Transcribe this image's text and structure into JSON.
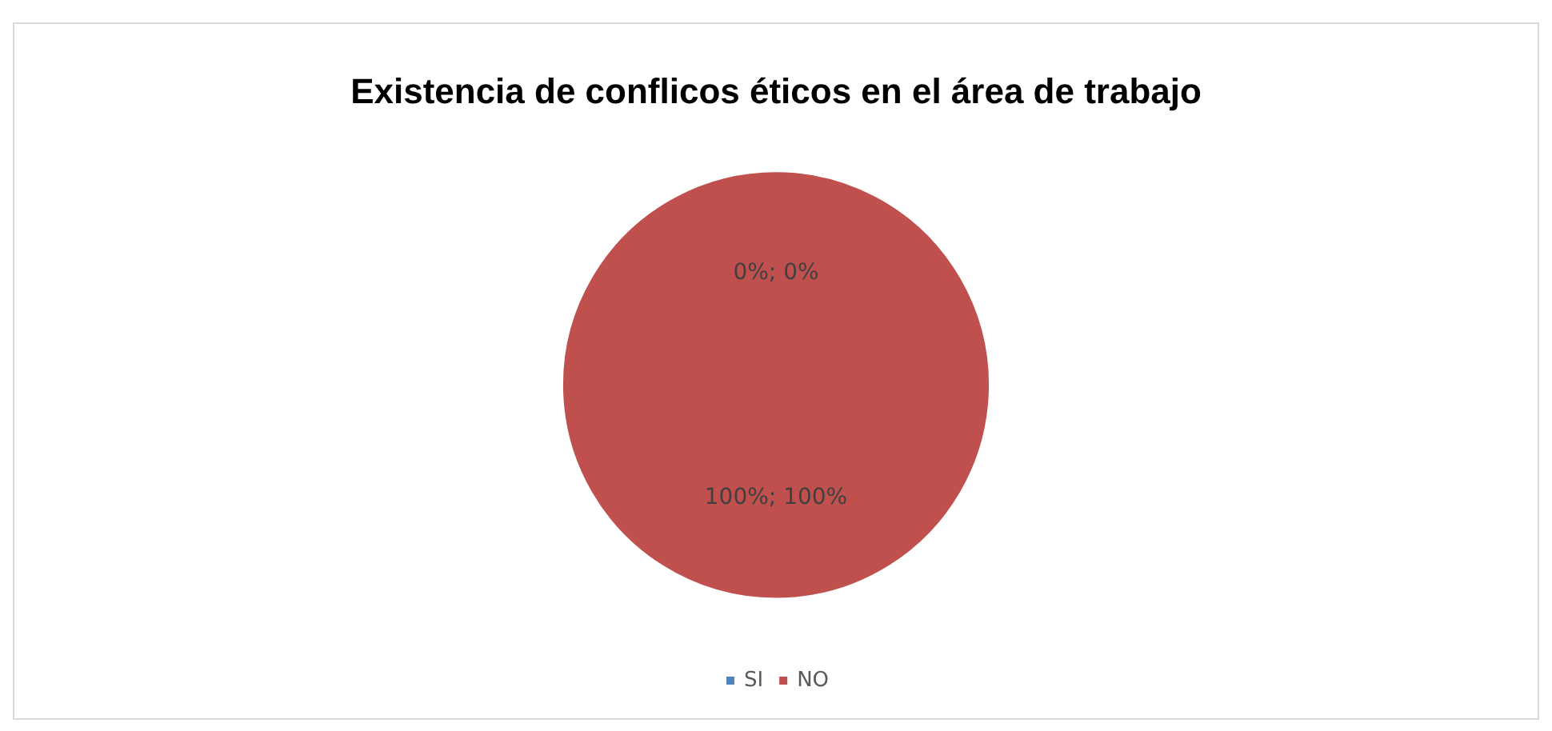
{
  "chart_data": {
    "type": "pie",
    "title": "Existencia de conflicos éticos en el área de trabajo",
    "categories": [
      "SI",
      "NO"
    ],
    "values": [
      0,
      100
    ],
    "colors": [
      "#4f81bd",
      "#c0504d"
    ],
    "value_labels": [
      "0%; 0%",
      "100%; 100%"
    ],
    "legend": "bottom"
  }
}
